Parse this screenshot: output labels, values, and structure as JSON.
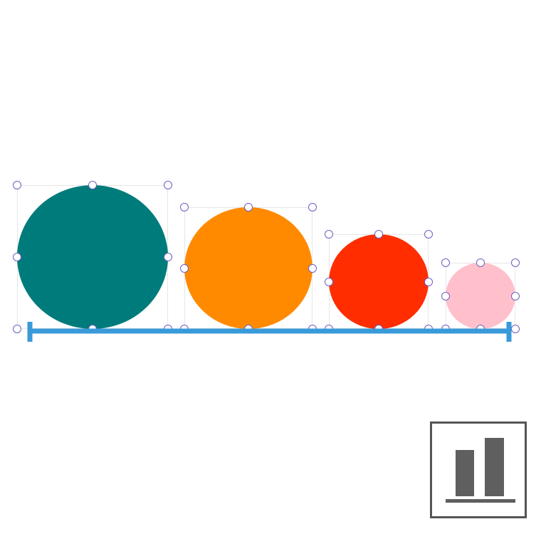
{
  "canvas": {
    "shapes": [
      {
        "name": "teal-circle",
        "color": "#007b7b"
      },
      {
        "name": "orange-circle",
        "color": "#ff8a00"
      },
      {
        "name": "red-circle",
        "color": "#ff2d00"
      },
      {
        "name": "pink-circle",
        "color": "#ffc0cb"
      }
    ],
    "selection_handle_color": "#6a5fc1",
    "distribute_line_color": "#3a9ad9"
  },
  "toolbar": {
    "chart_button_icon": "bar-chart-icon",
    "chart_button_color": "#5f5f5f"
  }
}
